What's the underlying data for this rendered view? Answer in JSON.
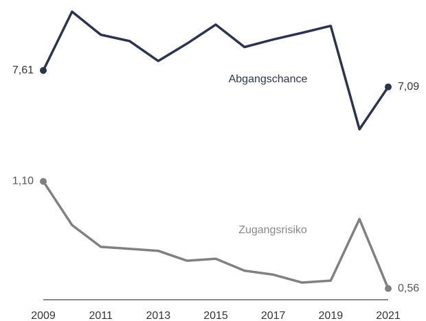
{
  "chart_data": {
    "type": "line",
    "x": [
      2009,
      2010,
      2011,
      2012,
      2013,
      2014,
      2015,
      2016,
      2017,
      2018,
      2019,
      2020,
      2021
    ],
    "xlim": [
      2009,
      2021
    ],
    "xticks": [
      2009,
      2011,
      2013,
      2015,
      2017,
      2019,
      2021
    ],
    "series": [
      {
        "name": "Abgangschance",
        "color": "#2b344f",
        "ylim": [
          5.5,
          9.6
        ],
        "values": [
          7.61,
          9.47,
          8.74,
          8.54,
          7.91,
          8.46,
          9.06,
          8.35,
          8.59,
          8.8,
          9.02,
          5.75,
          7.09
        ],
        "value_labels": [
          "7,61",
          null,
          null,
          null,
          null,
          null,
          null,
          null,
          null,
          null,
          null,
          null,
          "7,09"
        ]
      },
      {
        "name": "Zugangsrisiko",
        "color": "#808080",
        "ylim": [
          0.5,
          1.15
        ],
        "values": [
          1.1,
          0.88,
          0.77,
          0.76,
          0.75,
          0.7,
          0.71,
          0.65,
          0.63,
          0.59,
          0.6,
          0.91,
          0.56
        ],
        "value_labels": [
          "1,10",
          null,
          null,
          null,
          null,
          null,
          null,
          null,
          null,
          null,
          null,
          null,
          "0,56"
        ]
      }
    ]
  }
}
